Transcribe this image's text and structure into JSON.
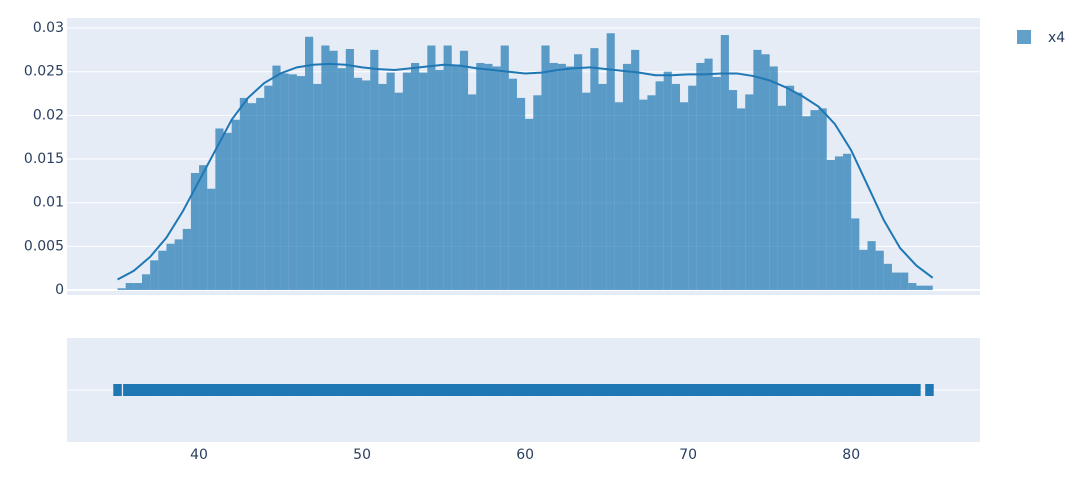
{
  "chart_data": {
    "type": "histogram",
    "bins": [
      35,
      35.5,
      36,
      36.5,
      37,
      37.5,
      38,
      38.5,
      39,
      39.5,
      40,
      40.5,
      41,
      41.5,
      42,
      42.5,
      43,
      43.5,
      44,
      44.5,
      45,
      45.5,
      46,
      46.5,
      47,
      47.5,
      48,
      48.5,
      49,
      49.5,
      50,
      50.5,
      51,
      51.5,
      52,
      52.5,
      53,
      53.5,
      54,
      54.5,
      55,
      55.5,
      56,
      56.5,
      57,
      57.5,
      58,
      58.5,
      59,
      59.5,
      60,
      60.5,
      61,
      61.5,
      62,
      62.5,
      63,
      63.5,
      64,
      64.5,
      65,
      65.5,
      66,
      66.5,
      67,
      67.5,
      68,
      68.5,
      69,
      69.5,
      70,
      70.5,
      71,
      71.5,
      72,
      72.5,
      73,
      73.5,
      74,
      74.5,
      75,
      75.5,
      76,
      76.5,
      77,
      77.5,
      78,
      78.5,
      79,
      79.5,
      80,
      80.5,
      81,
      81.5,
      82,
      82.5,
      83,
      83.5,
      84,
      84.5,
      85
    ],
    "series": [
      {
        "name": "x4",
        "color": "#1f77b4",
        "values": [
          0.0002,
          0.0008,
          0.0008,
          0.0018,
          0.0034,
          0.0045,
          0.0053,
          0.0058,
          0.007,
          0.0134,
          0.0143,
          0.0116,
          0.0185,
          0.018,
          0.0195,
          0.022,
          0.0214,
          0.022,
          0.0234,
          0.0257,
          0.0248,
          0.0247,
          0.0245,
          0.029,
          0.0236,
          0.028,
          0.0274,
          0.0254,
          0.0276,
          0.0243,
          0.024,
          0.0275,
          0.0236,
          0.0249,
          0.0226,
          0.0249,
          0.026,
          0.0249,
          0.028,
          0.0252,
          0.028,
          0.0258,
          0.0274,
          0.0224,
          0.026,
          0.0259,
          0.0256,
          0.028,
          0.0242,
          0.022,
          0.0196,
          0.0223,
          0.028,
          0.026,
          0.0259,
          0.0256,
          0.027,
          0.0226,
          0.0277,
          0.0236,
          0.0294,
          0.0215,
          0.0259,
          0.0275,
          0.0218,
          0.0223,
          0.0239,
          0.025,
          0.0236,
          0.0215,
          0.0234,
          0.026,
          0.0265,
          0.0244,
          0.0292,
          0.0229,
          0.0208,
          0.0224,
          0.0275,
          0.027,
          0.0256,
          0.0211,
          0.0234,
          0.0226,
          0.0199,
          0.0206,
          0.0208,
          0.0149,
          0.0153,
          0.0156,
          0.0082,
          0.0046,
          0.0056,
          0.0045,
          0.003,
          0.002,
          0.002,
          0.0008,
          0.0005,
          0.0005
        ]
      }
    ],
    "kde": {
      "x": [
        35,
        36,
        37,
        38,
        39,
        40,
        41,
        42,
        43,
        44,
        45,
        46,
        47,
        48,
        49,
        50,
        51,
        52,
        53,
        54,
        55,
        56,
        57,
        58,
        59,
        60,
        61,
        62,
        63,
        64,
        65,
        66,
        67,
        68,
        69,
        70,
        71,
        72,
        73,
        74,
        75,
        76,
        77,
        78,
        79,
        80,
        81,
        82,
        83,
        84,
        85
      ],
      "values": [
        0.0012,
        0.0022,
        0.0038,
        0.006,
        0.009,
        0.0125,
        0.016,
        0.0195,
        0.022,
        0.0237,
        0.0248,
        0.0255,
        0.0258,
        0.0259,
        0.0258,
        0.0255,
        0.0253,
        0.0252,
        0.0254,
        0.0256,
        0.0258,
        0.0257,
        0.0254,
        0.0252,
        0.025,
        0.0248,
        0.0249,
        0.0252,
        0.0254,
        0.0255,
        0.0253,
        0.0251,
        0.0249,
        0.0246,
        0.0246,
        0.0247,
        0.0247,
        0.0248,
        0.0248,
        0.0245,
        0.024,
        0.0232,
        0.0222,
        0.021,
        0.019,
        0.016,
        0.012,
        0.008,
        0.0048,
        0.0028,
        0.0014
      ]
    },
    "rug": {
      "x": [
        35,
        35.6,
        35.9,
        36.2,
        36.5,
        37,
        37.5,
        38,
        38.5,
        39,
        39.5,
        40,
        40.5,
        41,
        41.5,
        42,
        42.5,
        43,
        43.5,
        44,
        44.5,
        45,
        45.5,
        46,
        46.5,
        47,
        47.5,
        48,
        48.5,
        49,
        49.5,
        50,
        50.5,
        51,
        51.5,
        52,
        52.5,
        53,
        53.5,
        54,
        54.5,
        55,
        55.5,
        56,
        56.5,
        57,
        57.5,
        58,
        58.5,
        59,
        59.5,
        60,
        60.5,
        61,
        61.5,
        62,
        62.5,
        63,
        63.5,
        64,
        64.5,
        65,
        65.5,
        66,
        66.5,
        67,
        67.5,
        68,
        68.5,
        69,
        69.5,
        70,
        70.5,
        71,
        71.5,
        72,
        72.5,
        73,
        73.5,
        74,
        74.5,
        75,
        75.5,
        76,
        76.5,
        77,
        77.5,
        78,
        78.5,
        79,
        79.5,
        80,
        80.5,
        81,
        81.5,
        82,
        82.5,
        83,
        83.5,
        84,
        84.8
      ]
    },
    "xlim": [
      31.9,
      87.9
    ],
    "ylim": [
      -0.00057,
      0.03115
    ],
    "xticks": [
      40,
      50,
      60,
      70,
      80
    ],
    "yticks": [
      0,
      0.005,
      0.01,
      0.015,
      0.02,
      0.025,
      0.03
    ],
    "grid": true,
    "legend": "top-right"
  }
}
